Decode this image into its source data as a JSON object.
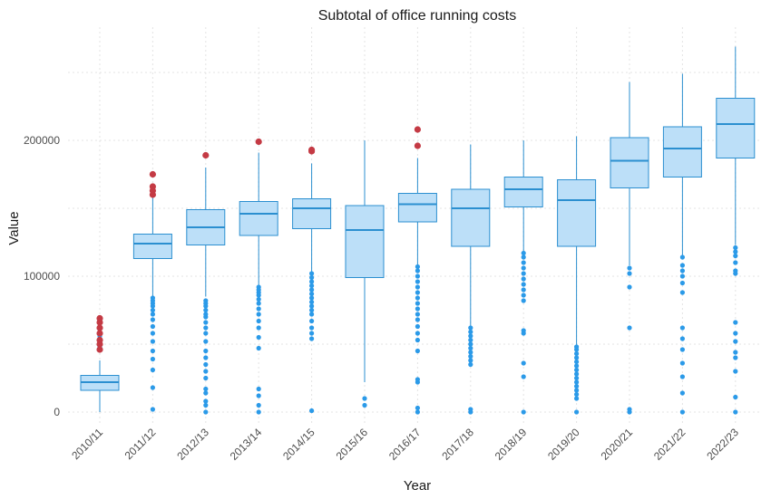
{
  "chart_data": {
    "type": "boxplot",
    "title": "Subtotal of office running costs",
    "xlabel": "Year",
    "ylabel": "Value",
    "ylim": [
      -5000,
      280000
    ],
    "yticks": [
      0,
      100000,
      200000
    ],
    "ytick_labels": [
      "0",
      "100000",
      "200000"
    ],
    "grid": true,
    "colors": {
      "box_fill": "#bcdff8",
      "box_line": "#2b8fd0",
      "outlier": "#2b9ae8",
      "extreme_outlier": "#c43a44"
    },
    "categories": [
      "2010/11",
      "2011/12",
      "2012/13",
      "2013/14",
      "2014/15",
      "2015/16",
      "2016/17",
      "2017/18",
      "2018/19",
      "2019/20",
      "2020/21",
      "2021/22",
      "2022/23"
    ],
    "boxes": [
      {
        "min": 0,
        "q1": 16000,
        "median": 22000,
        "q3": 27000,
        "max": 38000,
        "outliers": [
          46000,
          47000,
          48000,
          50000,
          52000,
          54000,
          56000,
          58000,
          62000,
          66000,
          69000
        ],
        "extreme_outliers": [
          46000,
          50000,
          53000,
          58000,
          62000,
          66000,
          69000
        ]
      },
      {
        "min": 85000,
        "q1": 113000,
        "median": 124000,
        "q3": 131000,
        "max": 160000,
        "outliers": [
          2000,
          18000,
          31000,
          39000,
          45000,
          52000,
          58000,
          63000,
          68000,
          72000,
          75000,
          78000,
          80000,
          82000,
          84000
        ],
        "extreme_outliers": [
          160000,
          163000,
          166000,
          175000
        ]
      },
      {
        "min": 85000,
        "q1": 123000,
        "median": 136000,
        "q3": 149000,
        "max": 180000,
        "outliers": [
          0,
          5000,
          8000,
          14000,
          17000,
          25000,
          30000,
          35000,
          40000,
          45000,
          52000,
          58000,
          62000,
          66000,
          70000,
          72000,
          75000,
          78000,
          80000,
          82000
        ],
        "extreme_outliers": [
          189000
        ]
      },
      {
        "min": 93000,
        "q1": 130000,
        "median": 146000,
        "q3": 155000,
        "max": 191000,
        "outliers": [
          0,
          5000,
          12000,
          17000,
          47000,
          55000,
          62000,
          67000,
          72000,
          76000,
          80000,
          83000,
          86000,
          88000,
          90000,
          92000
        ],
        "extreme_outliers": [
          199000
        ]
      },
      {
        "min": 103000,
        "q1": 135000,
        "median": 150000,
        "q3": 157000,
        "max": 183000,
        "outliers": [
          1000,
          54000,
          58000,
          62000,
          67000,
          72000,
          75000,
          78000,
          81000,
          84000,
          87000,
          90000,
          93000,
          96000,
          99000,
          102000
        ],
        "extreme_outliers": [
          192000,
          193000
        ]
      },
      {
        "min": 22000,
        "q1": 99000,
        "median": 134000,
        "q3": 152000,
        "max": 200000,
        "outliers": [
          5000,
          10000
        ],
        "extreme_outliers": []
      },
      {
        "min": 108000,
        "q1": 140000,
        "median": 153000,
        "q3": 161000,
        "max": 187000,
        "outliers": [
          0,
          3000,
          22000,
          24000,
          45000,
          53000,
          58000,
          63000,
          68000,
          72000,
          76000,
          80000,
          84000,
          88000,
          92000,
          96000,
          100000,
          104000,
          107000
        ],
        "extreme_outliers": [
          196000,
          208000
        ]
      },
      {
        "min": 63000,
        "q1": 122000,
        "median": 150000,
        "q3": 164000,
        "max": 197000,
        "outliers": [
          0,
          2000,
          35000,
          38000,
          41000,
          44000,
          47000,
          50000,
          53000,
          56000,
          59000,
          62000
        ],
        "extreme_outliers": []
      },
      {
        "min": 118000,
        "q1": 151000,
        "median": 164000,
        "q3": 173000,
        "max": 200000,
        "outliers": [
          0,
          26000,
          36000,
          58000,
          60000,
          82000,
          86000,
          90000,
          94000,
          98000,
          102000,
          106000,
          110000,
          114000,
          117000
        ],
        "extreme_outliers": []
      },
      {
        "min": 49000,
        "q1": 122000,
        "median": 156000,
        "q3": 171000,
        "max": 203000,
        "outliers": [
          0,
          10000,
          13000,
          16000,
          19000,
          22000,
          25000,
          28000,
          31000,
          34000,
          37000,
          40000,
          43000,
          46000,
          48000
        ],
        "extreme_outliers": []
      },
      {
        "min": 108000,
        "q1": 165000,
        "median": 185000,
        "q3": 202000,
        "max": 243000,
        "outliers": [
          0,
          2000,
          62000,
          92000,
          102000,
          106000
        ],
        "extreme_outliers": []
      },
      {
        "min": 115000,
        "q1": 173000,
        "median": 194000,
        "q3": 210000,
        "max": 249000,
        "outliers": [
          0,
          14000,
          26000,
          36000,
          46000,
          54000,
          62000,
          88000,
          95000,
          100000,
          104000,
          108000,
          114000
        ],
        "extreme_outliers": []
      },
      {
        "min": 123000,
        "q1": 187000,
        "median": 212000,
        "q3": 231000,
        "max": 269000,
        "outliers": [
          0,
          11000,
          30000,
          40000,
          44000,
          52000,
          58000,
          66000,
          102000,
          104000,
          110000,
          115000,
          118000,
          121000
        ],
        "extreme_outliers": []
      }
    ]
  }
}
